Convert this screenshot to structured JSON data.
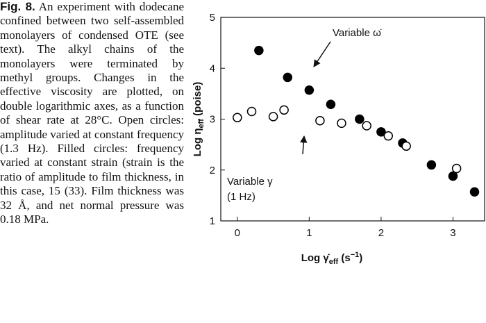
{
  "figure_label": "Fig. 8.",
  "caption": "An experiment with dodecane confined between two self-assembled monolayers of condensed OTE (see text). The alkyl chains of the monolayers were terminated by methyl groups. Changes in the effective viscosity are plotted, on double logarithmic axes, as a function of shear rate at 28°C. Open circles: amplitude varied at constant frequency (1.3 Hz). Filled circles: frequency varied at constant strain (strain is the ratio of amplitude to film thickness, in this case, 15 (33). Film thickness was 32 Å, and net normal pressure was 0.18 MPa.",
  "chart_data": {
    "type": "scatter",
    "xlabel": [
      {
        "text": "Log γ̇"
      },
      {
        "sub": "eff"
      },
      {
        "text": " (s"
      },
      {
        "sup": "−1"
      },
      {
        "text": ")"
      }
    ],
    "ylabel": [
      {
        "text": "Log η"
      },
      {
        "sub": "eff"
      },
      {
        "text": " (poise)"
      }
    ],
    "xlim": [
      -0.23,
      3.44
    ],
    "ylim": [
      1,
      5
    ],
    "xticks": [
      0,
      1,
      2,
      3
    ],
    "yticks": [
      1,
      2,
      3,
      4,
      5
    ],
    "series": [
      {
        "marker": "filled",
        "color": "#000000",
        "x": [
          0.3,
          0.7,
          1.0,
          1.3,
          1.7,
          2.0,
          2.3,
          2.7,
          3.0,
          3.3
        ],
        "values": [
          4.35,
          3.82,
          3.57,
          3.29,
          3.0,
          2.75,
          2.53,
          2.1,
          1.88,
          1.57
        ]
      },
      {
        "marker": "open",
        "color": "#000000",
        "x": [
          0,
          0.2,
          0.5,
          0.65,
          1.15,
          1.45,
          1.8,
          2.1,
          2.35,
          3.05
        ],
        "values": [
          3.03,
          3.15,
          3.05,
          3.18,
          2.97,
          2.92,
          2.87,
          2.67,
          2.47,
          2.03
        ]
      }
    ],
    "annotations": [
      "Variable ω̇",
      "Variable γ",
      "(1 Hz)"
    ]
  }
}
